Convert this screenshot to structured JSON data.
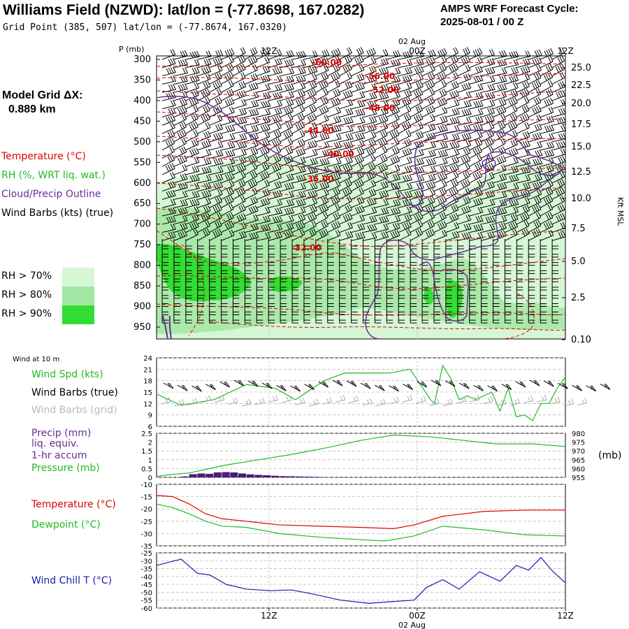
{
  "header": {
    "title": "Williams Field (NZWD):  lat/lon = (-77.8698, 167.0282)",
    "grid_point": "Grid Point (385, 507) lat/lon = (-77.8674, 167.0320)",
    "cycle_line1": "AMPS WRF Forecast Cycle:",
    "cycle_line2": "2025-08-01 / 00  Z"
  },
  "model_grid": {
    "label": "Model Grid ΔX:",
    "value": "0.889 km"
  },
  "legend": {
    "temperature": "Temperature (°C)",
    "rh": "RH (%, WRT liq. wat.)",
    "cloud": "Cloud/Precip Outline",
    "wind_barbs": "Wind Barbs (kts) (true)",
    "rh70": "RH > 70%",
    "rh80": "RH > 80%",
    "rh90": "RH > 90%"
  },
  "colors": {
    "temperature": "#e00000",
    "rh": "#22bb22",
    "cloud": "#6a2c91",
    "rh70": "#d6f7d6",
    "rh80": "#a3e6a3",
    "rh90": "#33dd33",
    "wind_chill": "#1a1aaa",
    "grid_barbs": "#aaaaaa",
    "precip_bar": "#4b1c7a"
  },
  "time_axis": {
    "ticks": [
      "12Z",
      "00Z",
      "12Z"
    ],
    "date_label": "02 Aug"
  },
  "labels": {
    "p_unit": "P (mb)",
    "kft": "Kft MSL",
    "wind_at_10m": "Wind at 10 m",
    "wind_spd": "Wind Spd (kts)",
    "barbs_true": "Wind Barbs (true)",
    "barbs_grid": "Wind Barbs (grid)",
    "precip_1": "Precip (mm)",
    "precip_2": "liq. equiv.",
    "precip_3": "1-hr accum",
    "pressure": "Pressure (mb)",
    "mb_unit": "(mb)",
    "temperature": "Temperature (°C)",
    "dewpoint": "Dewpoint (°C)",
    "windchill": "Wind Chill T (°C)"
  },
  "chart_data": [
    {
      "type": "heatmap",
      "panel": "upper-air cross-section",
      "y_axis_pressure": [
        300,
        350,
        400,
        450,
        500,
        550,
        600,
        650,
        700,
        750,
        800,
        850,
        900,
        950
      ],
      "y_axis_height": [
        "25.0",
        "22.5",
        "20.0",
        "17.5",
        "15.0",
        "12.5",
        "10.0",
        "7.5",
        "5.0",
        "2.5",
        "0.10"
      ],
      "y_axis_height_values": [
        25.0,
        22.5,
        20.0,
        17.5,
        15.0,
        12.5,
        10.0,
        7.5,
        5.0,
        2.5,
        0.1
      ],
      "temperature_contours": [
        {
          "label": "-60.00",
          "t": 0.38,
          "p": 308
        },
        {
          "label": "-56.00",
          "t": 0.51,
          "p": 341
        },
        {
          "label": "-52.00",
          "t": 0.52,
          "p": 375
        },
        {
          "label": "-48.00",
          "t": 0.51,
          "p": 418
        },
        {
          "label": "-44.00",
          "t": 0.36,
          "p": 473
        },
        {
          "label": "-40.00",
          "t": 0.41,
          "p": 530
        },
        {
          "label": "-36.00",
          "t": 0.36,
          "p": 590
        },
        {
          "label": "-32.00",
          "t": 0.33,
          "p": 757
        }
      ],
      "rh_levels": [
        "> 70%",
        "> 80%",
        "> 90%"
      ]
    },
    {
      "type": "line",
      "panel": "Wind at 10 m",
      "ylim": [
        6,
        24
      ],
      "yticks": [
        6,
        9,
        12,
        15,
        18,
        21,
        24
      ],
      "series": [
        {
          "name": "Wind Spd (kts)",
          "x": [
            0,
            0.06,
            0.14,
            0.22,
            0.29,
            0.34,
            0.41,
            0.46,
            0.51,
            0.57,
            0.62,
            0.67,
            0.68,
            0.7,
            0.72,
            0.74,
            0.76,
            0.78,
            0.8,
            0.82,
            0.84,
            0.86,
            0.88,
            0.9,
            0.92,
            0.94,
            0.96,
            0.98,
            1.0
          ],
          "values": [
            14.5,
            11.5,
            13,
            17,
            16,
            13,
            18,
            20,
            20,
            20,
            21,
            13,
            12,
            22,
            18.5,
            13,
            14,
            13,
            14,
            15,
            10,
            16,
            8.5,
            9,
            7.5,
            12,
            12,
            16,
            19
          ]
        }
      ]
    },
    {
      "type": "area",
      "panel": "Precip and Pressure",
      "precip_ylim": [
        0,
        2.5
      ],
      "precip_yticks": [
        0.0,
        0.5,
        1.0,
        1.5,
        2.0,
        2.5
      ],
      "pressure_ylim": [
        955,
        980
      ],
      "pressure_yticks": [
        955,
        960,
        965,
        970,
        975,
        980
      ],
      "series": [
        {
          "name": "Pressure (mb)",
          "x": [
            0,
            0.03,
            0.08,
            0.17,
            0.25,
            0.33,
            0.42,
            0.5,
            0.58,
            0.67,
            0.75,
            0.83,
            0.92,
            1.0
          ],
          "values": [
            955.5,
            956.5,
            957.5,
            962,
            965,
            968,
            972,
            976,
            979,
            978,
            976,
            974,
            974,
            972.5
          ]
        },
        {
          "name": "Precip (mm)",
          "x": [
            0.06,
            0.08,
            0.1,
            0.12,
            0.14,
            0.16,
            0.18,
            0.2,
            0.22,
            0.24,
            0.26,
            0.28,
            0.3,
            0.32,
            0.34,
            0.36,
            0.38,
            0.4
          ],
          "values": [
            0.05,
            0.18,
            0.22,
            0.2,
            0.28,
            0.3,
            0.28,
            0.22,
            0.17,
            0.14,
            0.12,
            0.09,
            0.07,
            0.06,
            0.05,
            0.04,
            0.03,
            0.02
          ]
        }
      ]
    },
    {
      "type": "line",
      "panel": "Temperature and Dewpoint",
      "ylim": [
        -35,
        -10
      ],
      "yticks": [
        -35,
        -30,
        -25,
        -20,
        -15,
        -10
      ],
      "series": [
        {
          "name": "Temperature (°C)",
          "x": [
            0,
            0.04,
            0.08,
            0.12,
            0.16,
            0.22,
            0.3,
            0.4,
            0.5,
            0.58,
            0.63,
            0.7,
            0.8,
            0.9,
            1.0
          ],
          "values": [
            -14.5,
            -15,
            -18,
            -22,
            -24,
            -25,
            -26.5,
            -27,
            -27.5,
            -28,
            -26.5,
            -23,
            -21,
            -20.5,
            -20.5
          ]
        },
        {
          "name": "Dewpoint (°C)",
          "x": [
            0,
            0.04,
            0.08,
            0.12,
            0.16,
            0.22,
            0.3,
            0.4,
            0.5,
            0.56,
            0.63,
            0.7,
            0.8,
            0.9,
            1.0
          ],
          "values": [
            -18,
            -19.5,
            -22,
            -25,
            -27,
            -27.5,
            -30,
            -31.5,
            -32.5,
            -33,
            -31,
            -27,
            -28.5,
            -30.5,
            -31
          ]
        }
      ]
    },
    {
      "type": "line",
      "panel": "Wind Chill",
      "ylim": [
        -60,
        -25
      ],
      "yticks": [
        -60,
        -55,
        -50,
        -45,
        -40,
        -35,
        -30,
        -25
      ],
      "series": [
        {
          "name": "Wind Chill T (°C)",
          "x": [
            0,
            0.03,
            0.06,
            0.1,
            0.13,
            0.17,
            0.22,
            0.28,
            0.33,
            0.38,
            0.45,
            0.52,
            0.57,
            0.63,
            0.66,
            0.7,
            0.74,
            0.79,
            0.84,
            0.88,
            0.91,
            0.94,
            0.97,
            1.0
          ],
          "values": [
            -33,
            -31,
            -29,
            -38,
            -39,
            -45,
            -48,
            -49,
            -48.5,
            -51,
            -55,
            -57,
            -56,
            -55,
            -47,
            -42,
            -48,
            -37,
            -43,
            -33,
            -36,
            -28,
            -37,
            -44
          ]
        }
      ]
    }
  ]
}
